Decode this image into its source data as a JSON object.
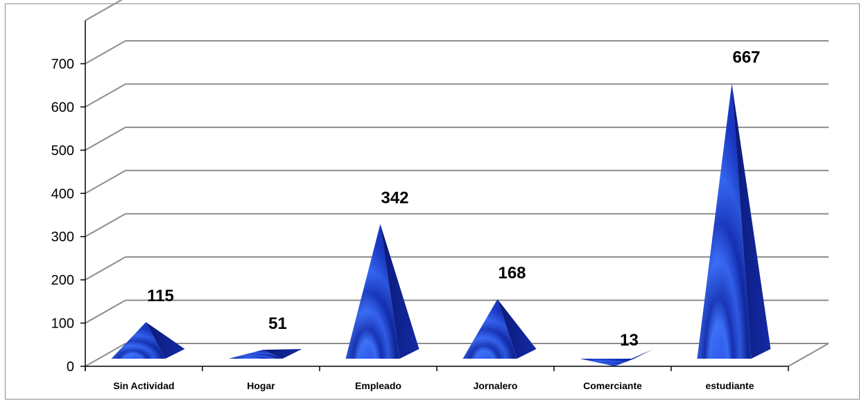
{
  "chart_data": {
    "type": "bar",
    "style": "3d-pyramid",
    "categories": [
      "Sin Actividad",
      "Hogar",
      "Empleado",
      "Jornalero",
      "Comerciante",
      "estudiante"
    ],
    "values": [
      115,
      51,
      342,
      168,
      13,
      667
    ],
    "data_labels": [
      "115",
      "51",
      "342",
      "168",
      "13",
      "667"
    ],
    "title": "",
    "xlabel": "",
    "ylabel": "",
    "ylim": [
      0,
      700
    ],
    "yticks": [
      "0",
      "100",
      "200",
      "300",
      "400",
      "500",
      "600",
      "700"
    ],
    "grid": true,
    "legend": "none",
    "colors": {
      "bar": "#1f3fd8",
      "bar_dark": "#0a1a6e",
      "bar_light": "#3f7bff",
      "grid": "#8c8c8c",
      "frame": "#8c8c8c"
    }
  }
}
